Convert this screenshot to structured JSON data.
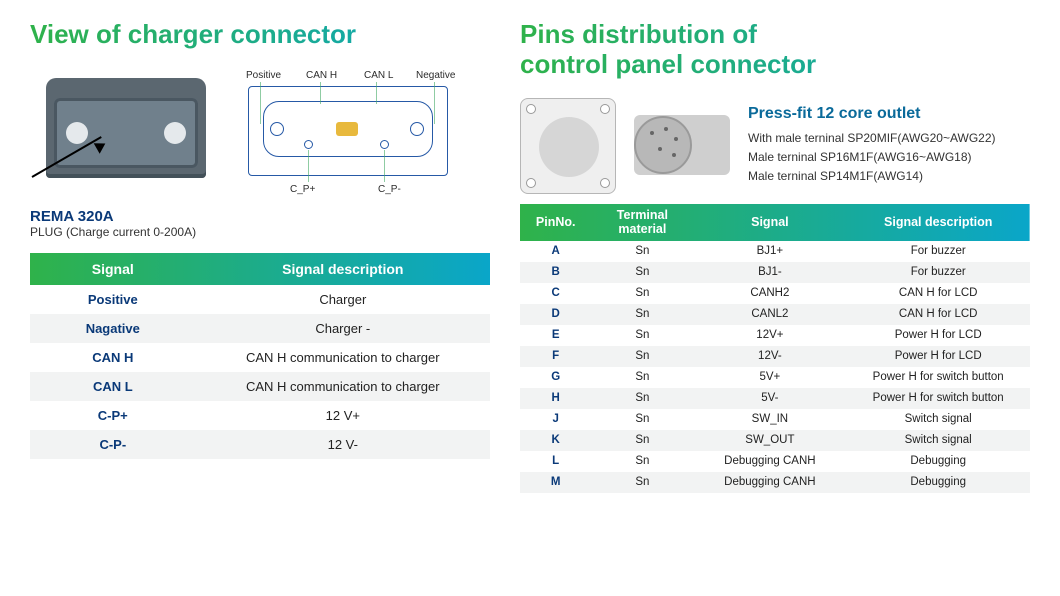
{
  "left": {
    "title": "View of charger connector",
    "title_gradient": [
      "#2fb24a",
      "#0aa6c9"
    ],
    "diagram_labels": {
      "positive": "Positive",
      "canh": "CAN H",
      "canl": "CAN L",
      "negative": "Negative",
      "cpp": "C_P+",
      "cpm": "C_P-"
    },
    "sub1": "REMA 320A",
    "sub2": "PLUG (Charge current 0-200A)",
    "table": {
      "header_gradient": [
        "#2fb24a",
        "#0aa6c9"
      ],
      "columns": [
        "Signal",
        "Signal description"
      ],
      "rows": [
        [
          "Positive",
          "Charger"
        ],
        [
          "Nagative",
          "Charger -"
        ],
        [
          "CAN H",
          "CAN H communication to charger"
        ],
        [
          "CAN L",
          "CAN H communication to charger"
        ],
        [
          "C-P+",
          "12 V+"
        ],
        [
          "C-P-",
          "12 V-"
        ]
      ]
    }
  },
  "right": {
    "title_l1": "Pins distribution of",
    "title_l2": "control panel connector",
    "title_gradient": [
      "#2fb24a",
      "#0aa6c9"
    ],
    "press_title": "Press-fit 12 core outlet",
    "press_lines": [
      "With male terninal SP20MIF(AWG20~AWG22)",
      "Male terninal SP16M1F(AWG16~AWG18)",
      "Male terninal SP14M1F(AWG14)"
    ],
    "table": {
      "header_gradient": [
        "#2fb24a",
        "#0aa6c9"
      ],
      "columns": [
        "PinNo.",
        "Terminal material",
        "Signal",
        "Signal description"
      ],
      "rows": [
        [
          "A",
          "Sn",
          "BJ1+",
          "For buzzer"
        ],
        [
          "B",
          "Sn",
          "BJ1-",
          "For buzzer"
        ],
        [
          "C",
          "Sn",
          "CANH2",
          "CAN H for LCD"
        ],
        [
          "D",
          "Sn",
          "CANL2",
          "CAN H for LCD"
        ],
        [
          "E",
          "Sn",
          "12V+",
          "Power H for LCD"
        ],
        [
          "F",
          "Sn",
          "12V-",
          "Power H for LCD"
        ],
        [
          "G",
          "Sn",
          "5V+",
          "Power H for switch button"
        ],
        [
          "H",
          "Sn",
          "5V-",
          "Power H for switch button"
        ],
        [
          "J",
          "Sn",
          "SW_IN",
          "Switch signal"
        ],
        [
          "K",
          "Sn",
          "SW_OUT",
          "Switch signal"
        ],
        [
          "L",
          "Sn",
          "Debugging CANH",
          "Debugging"
        ],
        [
          "M",
          "Sn",
          "Debugging CANH",
          "Debugging"
        ]
      ]
    }
  }
}
